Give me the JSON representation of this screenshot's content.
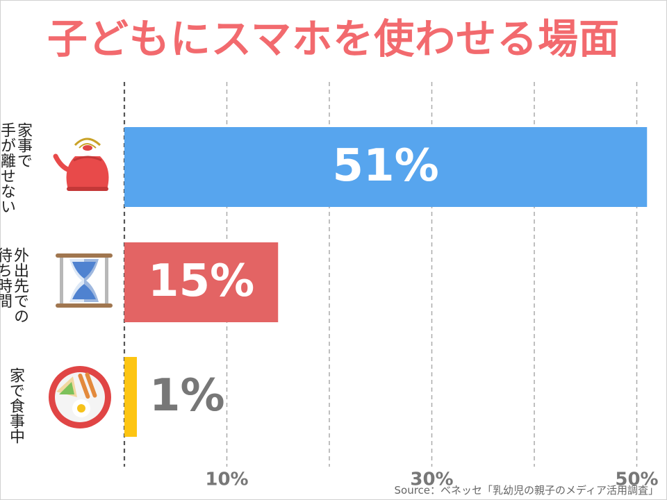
{
  "title": "子どもにスマホを使わせる場面",
  "source": "Source：ベネッセ「乳幼児の親子のメディア活用調査」",
  "chart_data": {
    "type": "bar",
    "orientation": "horizontal",
    "categories": [
      "家事で手が離せない",
      "外出先での待ち時間",
      "家で食事中"
    ],
    "category_label_lines": [
      [
        "家事で",
        "手が離せない"
      ],
      [
        "外出先での",
        "待ち時間"
      ],
      [
        "家で食事中"
      ]
    ],
    "values": [
      51,
      15,
      1
    ],
    "value_labels": [
      "51%",
      "15%",
      "1%"
    ],
    "bar_colors": [
      "#57a5ee",
      "#e36464",
      "#fdc513"
    ],
    "label_colors": [
      "#ffffff",
      "#ffffff",
      "#777777"
    ],
    "icons": [
      "kettle-icon",
      "hourglass-icon",
      "breakfast-plate-icon"
    ],
    "x_ticks": [
      10,
      30,
      50
    ],
    "x_tick_labels": [
      "10%",
      "30%",
      "50%"
    ],
    "xlim": [
      0,
      50
    ],
    "grid": true
  }
}
